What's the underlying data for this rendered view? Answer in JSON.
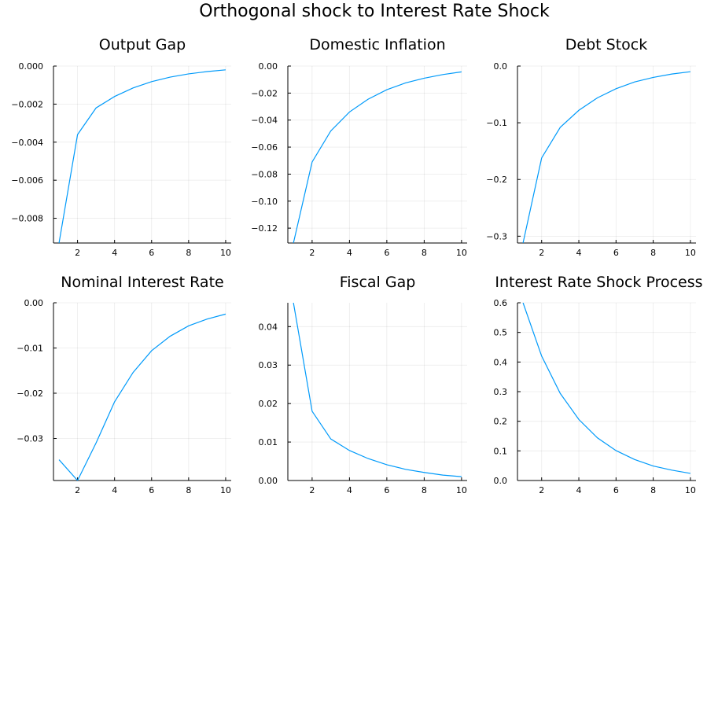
{
  "figure": {
    "title": "Orthogonal shock to Interest Rate Shock"
  },
  "chart_data": [
    {
      "type": "line",
      "title": "Output Gap",
      "xlabel": "",
      "ylabel": "",
      "x": [
        1,
        2,
        3,
        4,
        5,
        6,
        7,
        8,
        9,
        10
      ],
      "series": [
        {
          "values": [
            -0.0093,
            -0.0036,
            -0.0022,
            -0.0016,
            -0.00115,
            -0.00082,
            -0.00058,
            -0.00041,
            -0.00029,
            -0.0002
          ]
        }
      ],
      "xlim": [
        0.7,
        10.3
      ],
      "ylim": [
        -0.0093,
        0.0
      ],
      "xticks": [
        2,
        4,
        6,
        8,
        10
      ],
      "yticks": [
        0.0,
        -0.002,
        -0.004,
        -0.006,
        -0.008
      ],
      "yticklabels": [
        "0.000",
        "−0.002",
        "−0.004",
        "−0.006",
        "−0.008"
      ],
      "grid": true,
      "color": "#009AFA"
    },
    {
      "type": "line",
      "title": "Domestic Inflation",
      "xlabel": "",
      "ylabel": "",
      "x": [
        1,
        2,
        3,
        4,
        5,
        6,
        7,
        8,
        9,
        10
      ],
      "series": [
        {
          "values": [
            -0.131,
            -0.071,
            -0.048,
            -0.034,
            -0.0245,
            -0.0175,
            -0.0125,
            -0.009,
            -0.0063,
            -0.0043
          ]
        }
      ],
      "xlim": [
        0.7,
        10.3
      ],
      "ylim": [
        -0.131,
        0.0
      ],
      "xticks": [
        2,
        4,
        6,
        8,
        10
      ],
      "yticks": [
        0.0,
        -0.02,
        -0.04,
        -0.06,
        -0.08,
        -0.1,
        -0.12
      ],
      "yticklabels": [
        "0.00",
        "−0.02",
        "−0.04",
        "−0.06",
        "−0.08",
        "−0.10",
        "−0.12"
      ],
      "grid": true,
      "color": "#009AFA"
    },
    {
      "type": "line",
      "title": "Debt Stock",
      "xlabel": "",
      "ylabel": "",
      "x": [
        1,
        2,
        3,
        4,
        5,
        6,
        7,
        8,
        9,
        10
      ],
      "series": [
        {
          "values": [
            -0.312,
            -0.162,
            -0.108,
            -0.078,
            -0.056,
            -0.04,
            -0.028,
            -0.02,
            -0.014,
            -0.01
          ]
        }
      ],
      "xlim": [
        0.7,
        10.3
      ],
      "ylim": [
        -0.312,
        0.0
      ],
      "xticks": [
        2,
        4,
        6,
        8,
        10
      ],
      "yticks": [
        0.0,
        -0.1,
        -0.2,
        -0.3
      ],
      "yticklabels": [
        "0.0",
        "−0.1",
        "−0.2",
        "−0.3"
      ],
      "grid": true,
      "color": "#009AFA"
    },
    {
      "type": "line",
      "title": "Nominal Interest Rate",
      "xlabel": "",
      "ylabel": "",
      "x": [
        1,
        2,
        3,
        4,
        5,
        6,
        7,
        8,
        9,
        10
      ],
      "series": [
        {
          "values": [
            -0.0347,
            -0.0393,
            -0.031,
            -0.0219,
            -0.0154,
            -0.0106,
            -0.0074,
            -0.0051,
            -0.0036,
            -0.0025
          ]
        }
      ],
      "xlim": [
        0.7,
        10.3
      ],
      "ylim": [
        -0.0393,
        0.0
      ],
      "xticks": [
        2,
        4,
        6,
        8,
        10
      ],
      "yticks": [
        0.0,
        -0.01,
        -0.02,
        -0.03
      ],
      "yticklabels": [
        "0.00",
        "−0.01",
        "−0.02",
        "−0.03"
      ],
      "grid": true,
      "color": "#009AFA"
    },
    {
      "type": "line",
      "title": "Fiscal Gap",
      "xlabel": "",
      "ylabel": "",
      "x": [
        1,
        2,
        3,
        4,
        5,
        6,
        7,
        8,
        9,
        10
      ],
      "series": [
        {
          "values": [
            0.0462,
            0.018,
            0.0108,
            0.0078,
            0.0057,
            0.0041,
            0.0029,
            0.0021,
            0.0014,
            0.001
          ]
        }
      ],
      "xlim": [
        0.7,
        10.3
      ],
      "ylim": [
        0.0,
        0.0462
      ],
      "xticks": [
        2,
        4,
        6,
        8,
        10
      ],
      "yticks": [
        0.0,
        0.01,
        0.02,
        0.03,
        0.04
      ],
      "yticklabels": [
        "0.00",
        "0.01",
        "0.02",
        "0.03",
        "0.04"
      ],
      "grid": true,
      "color": "#009AFA"
    },
    {
      "type": "line",
      "title": "Interest Rate Shock Process A",
      "xlabel": "",
      "ylabel": "",
      "x": [
        1,
        2,
        3,
        4,
        5,
        6,
        7,
        8,
        9,
        10
      ],
      "series": [
        {
          "values": [
            0.6,
            0.42,
            0.294,
            0.206,
            0.144,
            0.101,
            0.071,
            0.049,
            0.035,
            0.024
          ]
        }
      ],
      "xlim": [
        0.7,
        10.3
      ],
      "ylim": [
        0.0,
        0.6
      ],
      "xticks": [
        2,
        4,
        6,
        8,
        10
      ],
      "yticks": [
        0.0,
        0.1,
        0.2,
        0.3,
        0.4,
        0.5,
        0.6
      ],
      "yticklabels": [
        "0.0",
        "0.1",
        "0.2",
        "0.3",
        "0.4",
        "0.5",
        "0.6"
      ],
      "grid": true,
      "color": "#009AFA"
    }
  ]
}
